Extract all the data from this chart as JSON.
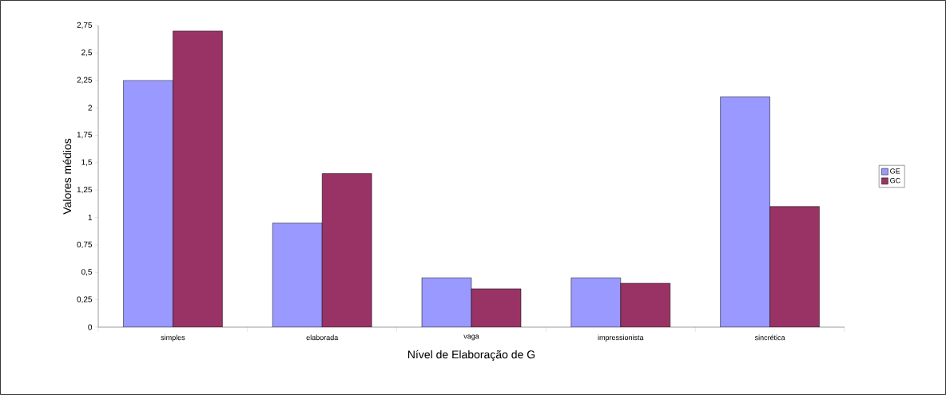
{
  "chart_data": {
    "type": "bar",
    "xlabel": "Nível de Elaboração de G",
    "ylabel": "Valores médios",
    "categories": [
      "simples",
      "elaborada",
      "vaga",
      "impressionista",
      "sincrética"
    ],
    "series": [
      {
        "name": "GE",
        "color": "#9999ff",
        "values": [
          2.25,
          0.95,
          0.45,
          0.45,
          2.1
        ]
      },
      {
        "name": "GC",
        "color": "#993366",
        "values": [
          2.7,
          1.4,
          0.35,
          0.4,
          1.1
        ]
      }
    ],
    "ylim": [
      0,
      2.75
    ],
    "yticks": [
      0,
      {
        "value": 0.25,
        "label": "0,25"
      },
      {
        "value": 0.5,
        "label": "0,5"
      },
      {
        "value": 0.75,
        "label": "0,75"
      },
      1,
      {
        "value": 1.25,
        "label": "1,25"
      },
      {
        "value": 1.5,
        "label": "1,5"
      },
      {
        "value": 1.75,
        "label": "1,75"
      },
      2,
      {
        "value": 2.25,
        "label": "2,25"
      },
      {
        "value": 2.5,
        "label": "2,5"
      },
      {
        "value": 2.75,
        "label": "2,75"
      }
    ],
    "grid": false,
    "legend": "right"
  }
}
